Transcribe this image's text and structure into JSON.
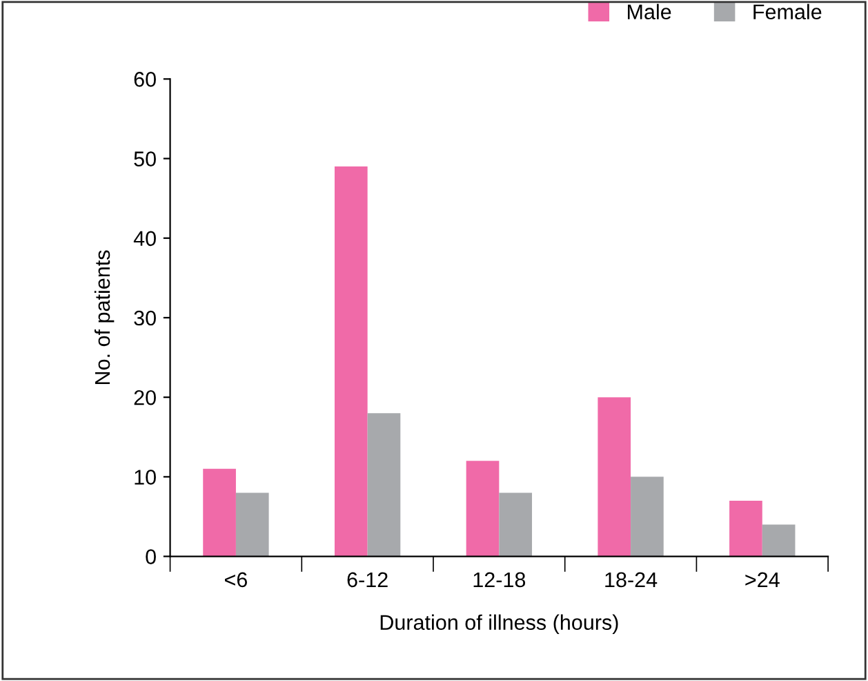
{
  "chart_data": {
    "type": "bar",
    "xlabel": "Duration of illness (hours)",
    "ylabel": "No. of patients",
    "categories": [
      "<6",
      "6-12",
      "12-18",
      "18-24",
      ">24"
    ],
    "series": [
      {
        "name": "Male",
        "color": "#f06aa8",
        "values": [
          11,
          49,
          12,
          20,
          7
        ]
      },
      {
        "name": "Female",
        "color": "#a7a9ac",
        "values": [
          8,
          18,
          8,
          10,
          4
        ]
      }
    ],
    "ylim": [
      0,
      60
    ],
    "yticks": [
      0,
      10,
      20,
      30,
      40,
      50,
      60
    ],
    "grid": false,
    "legend": "top right"
  }
}
